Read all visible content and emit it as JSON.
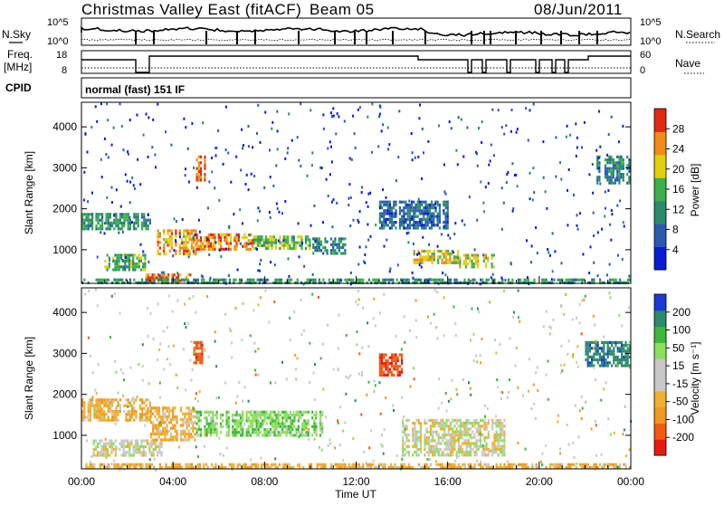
{
  "header": {
    "title": "Christmas Valley East (fitACF)",
    "beam": "Beam 05",
    "date": "08/Jun/2011"
  },
  "panels": {
    "sky": {
      "left_label": "N.Sky",
      "right_label": "N.Search",
      "left_top": "10^5",
      "left_bottom": "10^0",
      "right_top": "10^5",
      "right_bottom": "10^0"
    },
    "freq": {
      "left_label_1": "Freq.",
      "left_label_2": "[MHz]",
      "right_label": "Nave",
      "left_top": "18",
      "left_bottom": "8",
      "right_top": "60",
      "right_bottom": "0"
    },
    "cpid": {
      "label": "CPID",
      "text": "normal (fast) 151 IF"
    }
  },
  "colors": {
    "power": [
      "#0a1ad6",
      "#2a5ab0",
      "#2a8a6a",
      "#3ab04a",
      "#e0d010",
      "#f08a18",
      "#e22a10"
    ],
    "velocity": [
      "#e81a10",
      "#f05a10",
      "#f09820",
      "#f0b030",
      "#c8c8c8",
      "#c8c8c8",
      "#8ae05a",
      "#3ab83a",
      "#2a8a6a",
      "#1a3ad6"
    ]
  },
  "chart_data": [
    {
      "type": "heatmap",
      "name": "power",
      "ylabel": "Slant Range [km]",
      "xlabel": "",
      "x_ticks": [
        "00:00",
        "04:00",
        "08:00",
        "12:00",
        "16:00",
        "20:00",
        "00:00"
      ],
      "xlim_hours": [
        0,
        24
      ],
      "y_ticks": [
        1000,
        2000,
        3000,
        4000
      ],
      "ylim": [
        180,
        4600
      ],
      "colorbar": {
        "label": "Power [dB]",
        "ticks": [
          "4",
          "8",
          "12",
          "16",
          "20",
          "24",
          "28"
        ],
        "range": [
          0,
          30
        ]
      },
      "regions": [
        {
          "t": [
            0.0,
            3.0
          ],
          "r": [
            1500,
            1900
          ],
          "level": 12
        },
        {
          "t": [
            1.0,
            2.8
          ],
          "r": [
            500,
            900
          ],
          "level": 14
        },
        {
          "t": [
            2.8,
            4.8
          ],
          "r": [
            250,
            420
          ],
          "level": 26
        },
        {
          "t": [
            3.3,
            5.0
          ],
          "r": [
            900,
            1500
          ],
          "level": 22
        },
        {
          "t": [
            5.0,
            7.5
          ],
          "r": [
            1000,
            1400
          ],
          "level": 24
        },
        {
          "t": [
            7.5,
            10.0
          ],
          "r": [
            1000,
            1350
          ],
          "level": 16
        },
        {
          "t": [
            10.0,
            11.5
          ],
          "r": [
            900,
            1300
          ],
          "level": 10
        },
        {
          "t": [
            5.0,
            5.4
          ],
          "r": [
            2700,
            3300
          ],
          "level": 26
        },
        {
          "t": [
            14.5,
            16.5
          ],
          "r": [
            700,
            1000
          ],
          "level": 20
        },
        {
          "t": [
            16.5,
            18.0
          ],
          "r": [
            600,
            900
          ],
          "level": 18
        },
        {
          "t": [
            13.0,
            16.0
          ],
          "r": [
            1500,
            2200
          ],
          "level": 8
        },
        {
          "t": [
            22.5,
            24.0
          ],
          "r": [
            2600,
            3300
          ],
          "level": 10
        },
        {
          "t": [
            0.0,
            24.0
          ],
          "r": [
            200,
            300
          ],
          "level": 12
        }
      ]
    },
    {
      "type": "heatmap",
      "name": "velocity",
      "ylabel": "Slant Range [km]",
      "xlabel": "Time UT",
      "x_ticks": [
        "00:00",
        "04:00",
        "08:00",
        "12:00",
        "16:00",
        "20:00",
        "00:00"
      ],
      "xlim_hours": [
        0,
        24
      ],
      "y_ticks": [
        1000,
        2000,
        3000,
        4000
      ],
      "ylim": [
        180,
        4600
      ],
      "colorbar": {
        "label": "Velocity [m s⁻¹]",
        "ticks": [
          "-200",
          "-100",
          "-50",
          "-15",
          "15",
          "50",
          "100",
          "200"
        ],
        "range": [
          -250,
          250
        ]
      },
      "regions": [
        {
          "t": [
            0.0,
            3.0
          ],
          "r": [
            1400,
            1900
          ],
          "level": -40
        },
        {
          "t": [
            0.5,
            3.5
          ],
          "r": [
            500,
            900
          ],
          "level": 0
        },
        {
          "t": [
            3.0,
            5.0
          ],
          "r": [
            900,
            1700
          ],
          "level": -35
        },
        {
          "t": [
            5.0,
            10.5
          ],
          "r": [
            1000,
            1600
          ],
          "level": 40
        },
        {
          "t": [
            4.8,
            5.3
          ],
          "r": [
            2800,
            3300
          ],
          "level": -180
        },
        {
          "t": [
            13.0,
            14.0
          ],
          "r": [
            2500,
            3000
          ],
          "level": -190
        },
        {
          "t": [
            14.0,
            18.5
          ],
          "r": [
            500,
            1400
          ],
          "level": 0
        },
        {
          "t": [
            22.0,
            24.0
          ],
          "r": [
            2700,
            3300
          ],
          "level": 180
        },
        {
          "t": [
            0.0,
            24.0
          ],
          "r": [
            200,
            320
          ],
          "level": -40
        }
      ]
    }
  ]
}
